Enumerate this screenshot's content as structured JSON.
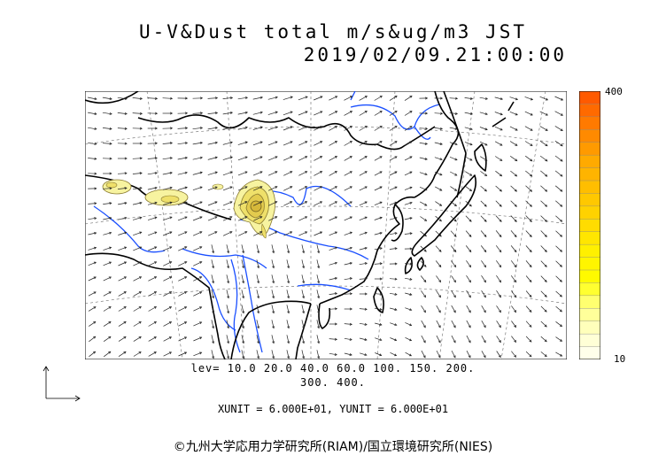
{
  "title": {
    "line1": "U-V&Dust total m/s&ug/m3 JST",
    "line2": "2019/02/09.21:00:00"
  },
  "colorbar": {
    "max_label": "400",
    "min_label": "10",
    "colors": [
      "#ff5a00",
      "#ff6a00",
      "#ff7a00",
      "#ff8a00",
      "#ff9a00",
      "#ffaa00",
      "#ffb400",
      "#ffbe00",
      "#ffc800",
      "#ffd200",
      "#ffdc00",
      "#ffe600",
      "#fff000",
      "#fff500",
      "#fffa00",
      "#ffff30",
      "#ffff70",
      "#ffff9a",
      "#ffffbb",
      "#ffffd6",
      "#ffffea"
    ]
  },
  "contour_levels": {
    "line1": "lev= 10.0 20.0 40.0 60.0 100. 150. 200.",
    "line2": "300. 400."
  },
  "units_text": "XUNIT = 6.000E+01, YUNIT = 6.000E+01",
  "credit": "©九州大学応用力学研究所(RIAM)/国立環境研究所(NIES)",
  "colors": {
    "coastline": "#000000",
    "rivers": "#1a4fff",
    "grid": "#555555",
    "dust_low": "#f7f3a0",
    "dust_mid": "#efe06a",
    "dust_high": "#d6b83a"
  }
}
